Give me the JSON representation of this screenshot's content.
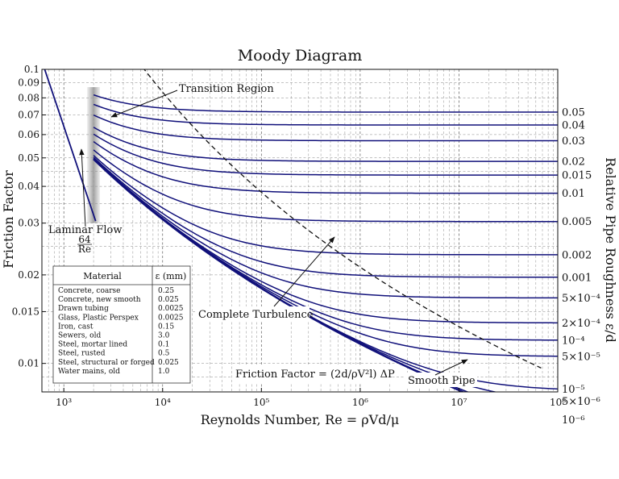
{
  "chart_data": {
    "type": "line",
    "title": "Moody Diagram",
    "xlabel": "Reynolds Number, Re = ρVd/μ",
    "ylabel": "Friction Factor",
    "y2label": "Relative Pipe Roughness ε/d",
    "xscale": "log",
    "yscale": "log",
    "xlim": [
      600,
      100000000
    ],
    "ylim": [
      0.008,
      0.1
    ],
    "grid": true,
    "x_ticks": [
      {
        "value": 1000,
        "label": "10³"
      },
      {
        "value": 10000,
        "label": "10⁴"
      },
      {
        "value": 100000,
        "label": "10⁵"
      },
      {
        "value": 1000000,
        "label": "10⁶"
      },
      {
        "value": 10000000,
        "label": "10⁷"
      },
      {
        "value": 100000000,
        "label": "10⁸"
      }
    ],
    "y_ticks": [
      {
        "value": 0.1,
        "label": "0.1"
      },
      {
        "value": 0.09,
        "label": "0.09"
      },
      {
        "value": 0.08,
        "label": "0.08"
      },
      {
        "value": 0.07,
        "label": "0.07"
      },
      {
        "value": 0.06,
        "label": "0.06"
      },
      {
        "value": 0.05,
        "label": "0.05"
      },
      {
        "value": 0.04,
        "label": "0.04"
      },
      {
        "value": 0.03,
        "label": "0.03"
      },
      {
        "value": 0.02,
        "label": "0.02"
      },
      {
        "value": 0.015,
        "label": "0.015"
      },
      {
        "value": 0.01,
        "label": "0.01"
      }
    ],
    "laminar": {
      "re_start": 600,
      "re_end": 2100
    },
    "transition_re": 2000,
    "roughness_series": [
      {
        "value": 0.05,
        "label": "0.05"
      },
      {
        "value": 0.04,
        "label": "0.04"
      },
      {
        "value": 0.03,
        "label": "0.03"
      },
      {
        "value": 0.02,
        "label": "0.02"
      },
      {
        "value": 0.015,
        "label": "0.015"
      },
      {
        "value": 0.01,
        "label": "0.01"
      },
      {
        "value": 0.005,
        "label": "0.005"
      },
      {
        "value": 0.002,
        "label": "0.002"
      },
      {
        "value": 0.001,
        "label": "0.001"
      },
      {
        "value": 0.0005,
        "label": "5×10⁻⁴"
      },
      {
        "value": 0.0002,
        "label": "2×10⁻⁴"
      },
      {
        "value": 0.0001,
        "label": "10⁻⁴"
      },
      {
        "value": 5e-05,
        "label": "5×10⁻⁵"
      },
      {
        "value": 1e-05,
        "label": "10⁻⁵"
      },
      {
        "value": 5e-06,
        "label": "5×10⁻⁶"
      },
      {
        "value": 1e-06,
        "label": "10⁻⁶"
      },
      {
        "value": 0,
        "label": ""
      }
    ],
    "annotations": {
      "transition": "Transition Region",
      "laminar": "Laminar Flow",
      "laminar_formula_num": "64",
      "laminar_formula_den": "Re",
      "complete": "Complete Turbulence",
      "friction_formula": "Friction Factor = (2d/ρV²l) ΔP",
      "smooth": "Smooth Pipe"
    },
    "material_table": {
      "headers": [
        "Material",
        "ε (mm)"
      ],
      "rows": [
        [
          "Concrete, coarse",
          "0.25"
        ],
        [
          "Concrete, new smooth",
          "0.025"
        ],
        [
          "Drawn tubing",
          "0.0025"
        ],
        [
          "Glass, Plastic Perspex",
          "0.0025"
        ],
        [
          "Iron, cast",
          "0.15"
        ],
        [
          "Sewers, old",
          "3.0"
        ],
        [
          "Steel, mortar lined",
          "0.1"
        ],
        [
          "Steel, rusted",
          "0.5"
        ],
        [
          "Steel, structural or forged",
          "0.025"
        ],
        [
          "Water mains, old",
          "1.0"
        ]
      ]
    },
    "colors": {
      "curve": "#10107a",
      "grid": "#333333",
      "shade": "#9a9a9a"
    }
  }
}
